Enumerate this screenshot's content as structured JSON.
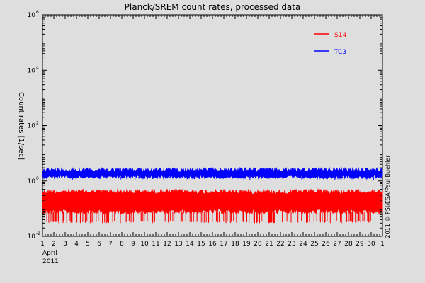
{
  "chart_data": {
    "type": "line",
    "title": "Planck/SREM count rates, processed data",
    "ylabel": "Count rates [1/sec]",
    "xlabel": "",
    "y_scale": "log",
    "ylim": [
      0.01,
      1000000
    ],
    "xlim": [
      1,
      31
    ],
    "x_tick_labels": [
      "1",
      "2",
      "3",
      "4",
      "5",
      "6",
      "7",
      "8",
      "9",
      "10",
      "11",
      "12",
      "13",
      "14",
      "15",
      "16",
      "17",
      "18",
      "19",
      "20",
      "21",
      "22",
      "23",
      "24",
      "25",
      "26",
      "27",
      "28",
      "29",
      "30",
      "1"
    ],
    "x_sublabel_month": "April",
    "x_sublabel_year": "2011",
    "y_ticks": [
      {
        "base": "10",
        "exp": "-2",
        "value": 0.01
      },
      {
        "base": "10",
        "exp": "0",
        "value": 1
      },
      {
        "base": "10",
        "exp": "2",
        "value": 100
      },
      {
        "base": "10",
        "exp": "4",
        "value": 10000
      },
      {
        "base": "10",
        "exp": "6",
        "value": 1000000
      }
    ],
    "grid": false,
    "legend_position": "top-right",
    "series": [
      {
        "name": "S14",
        "color": "#ff0000",
        "band_low": 0.08,
        "band_high": 0.4,
        "spike_floor": 0.03
      },
      {
        "name": "TC3",
        "color": "#0000ff",
        "band_low": 1.4,
        "band_high": 2.5,
        "spike_floor": 1.1
      }
    ],
    "credit": "2011 © PSI/ESA/Paul Buehler"
  }
}
